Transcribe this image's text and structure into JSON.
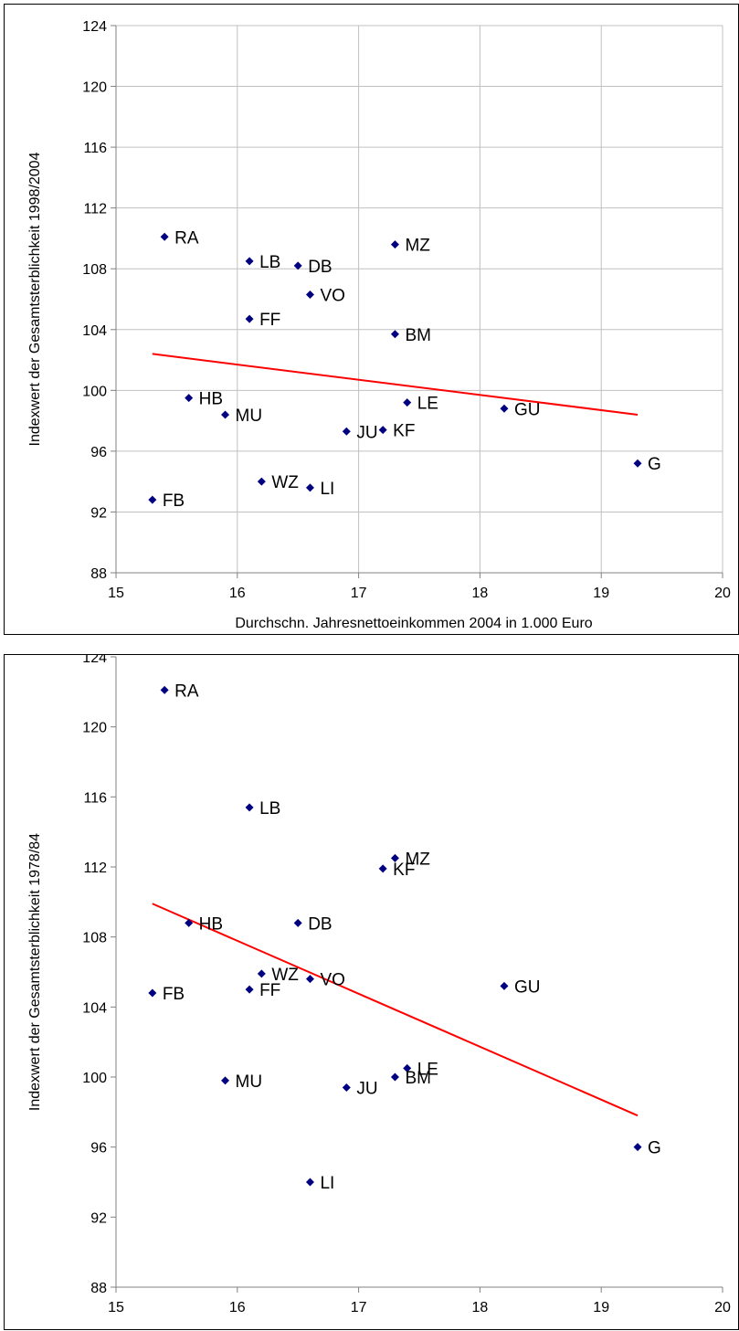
{
  "colors": {
    "marker": "#000080",
    "trendline": "#ff0000",
    "grid": "#c0c0c0",
    "axis": "#808080"
  },
  "chart_data": [
    {
      "type": "scatter",
      "xlabel": "Durchschn. Jahresnettoeinkommen 2004 in 1.000 Euro",
      "ylabel": "Indexwert der Gesamtsterblichkeit 1998/2004",
      "xlim": [
        15,
        20
      ],
      "ylim": [
        88,
        124
      ],
      "xticks": [
        "15",
        "16",
        "17",
        "18",
        "19",
        "20"
      ],
      "yticks": [
        "88",
        "92",
        "96",
        "100",
        "104",
        "108",
        "112",
        "116",
        "120",
        "124"
      ],
      "grid": "vertical and horizontal major gridlines",
      "trendline": {
        "x": [
          15.3,
          19.3
        ],
        "y": [
          102.4,
          98.4
        ]
      },
      "points": [
        {
          "label": "RA",
          "x": 15.4,
          "y": 110.1
        },
        {
          "label": "LB",
          "x": 16.1,
          "y": 108.5
        },
        {
          "label": "DB",
          "x": 16.5,
          "y": 108.2
        },
        {
          "label": "MZ",
          "x": 17.3,
          "y": 109.6
        },
        {
          "label": "VO",
          "x": 16.6,
          "y": 106.3
        },
        {
          "label": "FF",
          "x": 16.1,
          "y": 104.7
        },
        {
          "label": "BM",
          "x": 17.3,
          "y": 103.7
        },
        {
          "label": "HB",
          "x": 15.6,
          "y": 99.5
        },
        {
          "label": "LE",
          "x": 17.4,
          "y": 99.2
        },
        {
          "label": "GU",
          "x": 18.2,
          "y": 98.8
        },
        {
          "label": "MU",
          "x": 15.9,
          "y": 98.4
        },
        {
          "label": "JU",
          "x": 16.9,
          "y": 97.3
        },
        {
          "label": "KF",
          "x": 17.2,
          "y": 97.4
        },
        {
          "label": "G",
          "x": 19.3,
          "y": 95.2
        },
        {
          "label": "WZ",
          "x": 16.2,
          "y": 94.0
        },
        {
          "label": "LI",
          "x": 16.6,
          "y": 93.6
        },
        {
          "label": "FB",
          "x": 15.3,
          "y": 92.8
        }
      ]
    },
    {
      "type": "scatter",
      "xlabel": "Durchschn. Jahresnettoeinkommen 2004 in 1.000 Euro",
      "ylabel": "Indexwert der Gesamtsterblichkeit 1978/84",
      "xlim": [
        15,
        20
      ],
      "ylim": [
        88,
        124
      ],
      "xticks": [
        "15",
        "16",
        "17",
        "18",
        "19",
        "20"
      ],
      "yticks": [
        "88",
        "92",
        "96",
        "100",
        "104",
        "108",
        "112",
        "116",
        "120",
        "124"
      ],
      "grid": "none",
      "trendline": {
        "x": [
          15.3,
          19.3
        ],
        "y": [
          109.9,
          97.8
        ]
      },
      "points": [
        {
          "label": "RA",
          "x": 15.4,
          "y": 122.1
        },
        {
          "label": "LB",
          "x": 16.1,
          "y": 115.4
        },
        {
          "label": "MZ",
          "x": 17.3,
          "y": 112.5
        },
        {
          "label": "KF",
          "x": 17.2,
          "y": 111.9
        },
        {
          "label": "HB",
          "x": 15.6,
          "y": 108.8
        },
        {
          "label": "DB",
          "x": 16.5,
          "y": 108.8
        },
        {
          "label": "WZ",
          "x": 16.2,
          "y": 105.9
        },
        {
          "label": "VO",
          "x": 16.6,
          "y": 105.6
        },
        {
          "label": "GU",
          "x": 18.2,
          "y": 105.2
        },
        {
          "label": "FF",
          "x": 16.1,
          "y": 105.0
        },
        {
          "label": "FB",
          "x": 15.3,
          "y": 104.8
        },
        {
          "label": "LE",
          "x": 17.4,
          "y": 100.5
        },
        {
          "label": "BM",
          "x": 17.3,
          "y": 100.0
        },
        {
          "label": "MU",
          "x": 15.9,
          "y": 99.8
        },
        {
          "label": "JU",
          "x": 16.9,
          "y": 99.4
        },
        {
          "label": "G",
          "x": 19.3,
          "y": 96.0
        },
        {
          "label": "LI",
          "x": 16.6,
          "y": 94.0
        }
      ]
    }
  ]
}
